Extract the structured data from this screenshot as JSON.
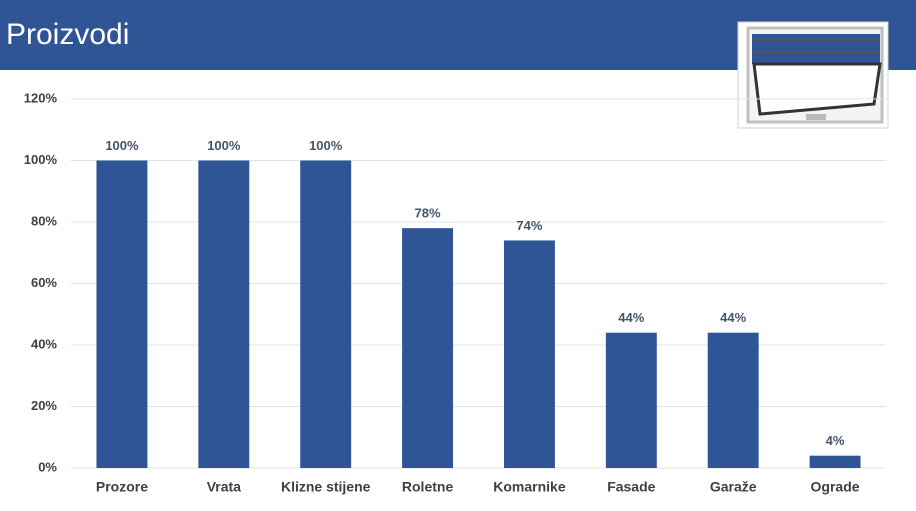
{
  "chart_data": {
    "type": "bar",
    "title": "Proizvodi",
    "categories": [
      "Prozore",
      "Vrata",
      "Klizne stijene",
      "Roletne",
      "Komarnike",
      "Fasade",
      "Garaže",
      "Ograde"
    ],
    "values": [
      100,
      100,
      100,
      78,
      74,
      44,
      44,
      4
    ],
    "value_labels": [
      "100%",
      "100%",
      "100%",
      "78%",
      "74%",
      "44%",
      "44%",
      "4%"
    ],
    "color": "#2f5597",
    "ylim": [
      0,
      120
    ],
    "yticks": [
      {
        "value": 0,
        "label": "0%"
      },
      {
        "value": 20,
        "label": "20%"
      },
      {
        "value": 40,
        "label": "40%"
      },
      {
        "value": 60,
        "label": "60%"
      },
      {
        "value": 80,
        "label": "80%"
      },
      {
        "value": 100,
        "label": "100%"
      },
      {
        "value": 120,
        "label": "120%"
      }
    ],
    "grid": true
  }
}
